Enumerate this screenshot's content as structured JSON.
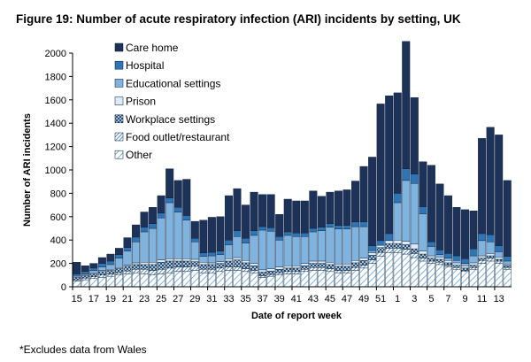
{
  "title": "Figure 19: Number of acute respiratory infection (ARI) incidents by setting, UK",
  "footnote": "*Excludes data from Wales",
  "chart_data": {
    "type": "bar",
    "stacked": true,
    "title": "Figure 19: Number of acute respiratory infection (ARI) incidents by setting, UK",
    "xlabel": "Date of report week",
    "ylabel": "Number of ARI incidents",
    "ylim": [
      0,
      2000
    ],
    "yticks": [
      0,
      200,
      400,
      600,
      800,
      1000,
      1200,
      1400,
      1600,
      1800,
      2000
    ],
    "categories": [
      "15",
      "16",
      "17",
      "18",
      "19",
      "20",
      "21",
      "22",
      "23",
      "24",
      "25",
      "26",
      "27",
      "28",
      "29",
      "30",
      "31",
      "32",
      "33",
      "34",
      "35",
      "36",
      "37",
      "38",
      "39",
      "40",
      "41",
      "42",
      "43",
      "44",
      "45",
      "46",
      "47",
      "48",
      "49",
      "50",
      "51",
      "52",
      "1",
      "2",
      "3",
      "4",
      "5",
      "6",
      "7",
      "8",
      "9",
      "10",
      "11",
      "12",
      "13",
      "14"
    ],
    "xtick_labels": [
      "15",
      "17",
      "19",
      "21",
      "23",
      "25",
      "27",
      "29",
      "31",
      "33",
      "35",
      "37",
      "39",
      "41",
      "43",
      "45",
      "47",
      "49",
      "51",
      "1",
      "3",
      "5",
      "7",
      "9",
      "11",
      "13"
    ],
    "legend": [
      "Care home",
      "Hospital",
      "Educational settings",
      "Prison",
      "Workplace settings",
      "Food outlet/restaurant",
      "Other"
    ],
    "legend_position": "top-left",
    "series": [
      {
        "name": "Other",
        "color": "#a6c8e6",
        "pattern": "diag-light",
        "values": [
          50,
          60,
          70,
          80,
          90,
          100,
          110,
          120,
          110,
          100,
          110,
          120,
          130,
          130,
          140,
          120,
          120,
          130,
          140,
          140,
          130,
          120,
          80,
          90,
          100,
          110,
          110,
          130,
          140,
          140,
          130,
          120,
          120,
          140,
          160,
          200,
          260,
          290,
          290,
          280,
          250,
          220,
          200,
          190,
          170,
          150,
          130,
          150,
          200,
          220,
          200,
          150
        ]
      },
      {
        "name": "Food outlet/restaurant",
        "color": "#2e75b6",
        "pattern": "diag-dense",
        "values": [
          10,
          15,
          15,
          20,
          20,
          20,
          25,
          30,
          40,
          40,
          40,
          40,
          40,
          40,
          35,
          30,
          30,
          30,
          30,
          30,
          25,
          20,
          15,
          15,
          20,
          20,
          20,
          20,
          25,
          25,
          25,
          20,
          20,
          25,
          25,
          30,
          35,
          40,
          40,
          40,
          35,
          25,
          20,
          20,
          15,
          15,
          10,
          15,
          25,
          25,
          20,
          15
        ]
      },
      {
        "name": "Workplace settings",
        "color": "#1f4e79",
        "pattern": "cross",
        "values": [
          20,
          20,
          25,
          30,
          30,
          35,
          40,
          40,
          40,
          50,
          60,
          60,
          50,
          50,
          40,
          40,
          40,
          40,
          50,
          60,
          50,
          40,
          30,
          30,
          30,
          30,
          30,
          30,
          35,
          35,
          35,
          35,
          35,
          40,
          40,
          40,
          40,
          40,
          40,
          40,
          40,
          35,
          25,
          25,
          20,
          20,
          20,
          20,
          20,
          20,
          15,
          15
        ]
      },
      {
        "name": "Prison",
        "color": "#dcebf7",
        "pattern": "solid",
        "values": [
          10,
          10,
          10,
          10,
          10,
          10,
          10,
          15,
          20,
          20,
          20,
          20,
          20,
          20,
          20,
          20,
          15,
          15,
          20,
          20,
          20,
          20,
          20,
          20,
          20,
          20,
          20,
          20,
          20,
          20,
          20,
          20,
          20,
          20,
          20,
          20,
          20,
          25,
          30,
          30,
          40,
          25,
          20,
          20,
          20,
          20,
          20,
          20,
          20,
          20,
          20,
          10
        ]
      },
      {
        "name": "Educational settings",
        "color": "#7fb3e0",
        "pattern": "solid",
        "values": [
          0,
          5,
          20,
          30,
          40,
          80,
          120,
          180,
          260,
          290,
          360,
          480,
          400,
          330,
          150,
          50,
          60,
          60,
          120,
          180,
          150,
          240,
          340,
          320,
          230,
          260,
          250,
          230,
          250,
          260,
          300,
          300,
          300,
          290,
          270,
          20,
          0,
          0,
          320,
          520,
          520,
          320,
          80,
          20,
          20,
          20,
          20,
          60,
          130,
          100,
          45,
          30
        ]
      },
      {
        "name": "Hospital",
        "color": "#2e75b6",
        "pattern": "solid",
        "values": [
          20,
          20,
          20,
          30,
          30,
          30,
          30,
          40,
          40,
          40,
          40,
          40,
          40,
          40,
          30,
          30,
          30,
          30,
          40,
          50,
          40,
          40,
          30,
          30,
          30,
          30,
          30,
          30,
          30,
          30,
          30,
          30,
          30,
          40,
          40,
          40,
          40,
          60,
          80,
          100,
          80,
          60,
          40,
          40,
          40,
          40,
          40,
          60,
          60,
          60,
          50,
          40
        ]
      },
      {
        "name": "Care home",
        "color": "#1c3258",
        "pattern": "solid",
        "values": [
          100,
          50,
          40,
          50,
          60,
          55,
          85,
          105,
          130,
          140,
          150,
          250,
          230,
          310,
          145,
          280,
          300,
          295,
          380,
          360,
          285,
          330,
          275,
          285,
          190,
          280,
          275,
          275,
          320,
          265,
          270,
          295,
          305,
          350,
          475,
          760,
          1170,
          1180,
          860,
          1090,
          655,
          385,
          655,
          565,
          495,
          415,
          420,
          325,
          815,
          920,
          950,
          650
        ]
      }
    ]
  }
}
